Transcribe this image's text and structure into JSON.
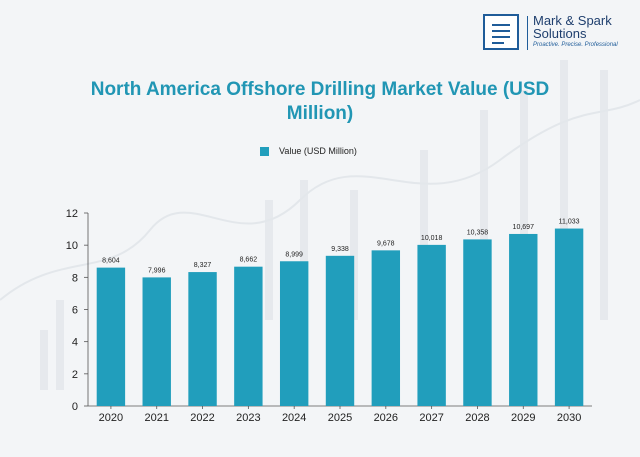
{
  "brand": {
    "name": "Mark & Spark Solutions",
    "tagline": "Proactive. Precise. Professional"
  },
  "colors": {
    "bar": "#219ebc",
    "title": "#2196b4",
    "brand": "#1f5c99"
  },
  "chart_data": {
    "type": "bar",
    "title": "North America Offshore Drilling Market Value (USD Million)",
    "xlabel": "",
    "ylabel": "",
    "categories": [
      "2020",
      "2021",
      "2022",
      "2023",
      "2024",
      "2025",
      "2026",
      "2027",
      "2028",
      "2029",
      "2030"
    ],
    "series": [
      {
        "name": "Value (USD Million)",
        "values": [
          8604,
          7996,
          8327,
          8662,
          8999,
          9338,
          9678,
          10018,
          10358,
          10697,
          11033
        ],
        "value_labels": [
          "8,604",
          "7,996",
          "8,327",
          "8,662",
          "8,999",
          "9,338",
          "9,678",
          "10,018",
          "10,358",
          "10,697",
          "11,033"
        ]
      }
    ],
    "yticks": [
      "0",
      "2",
      "4",
      "6",
      "8",
      "10",
      "12"
    ],
    "ylim": [
      0,
      12
    ],
    "ylim_units": "thousand USD Million",
    "grid": false,
    "legend_position": "top-center"
  }
}
